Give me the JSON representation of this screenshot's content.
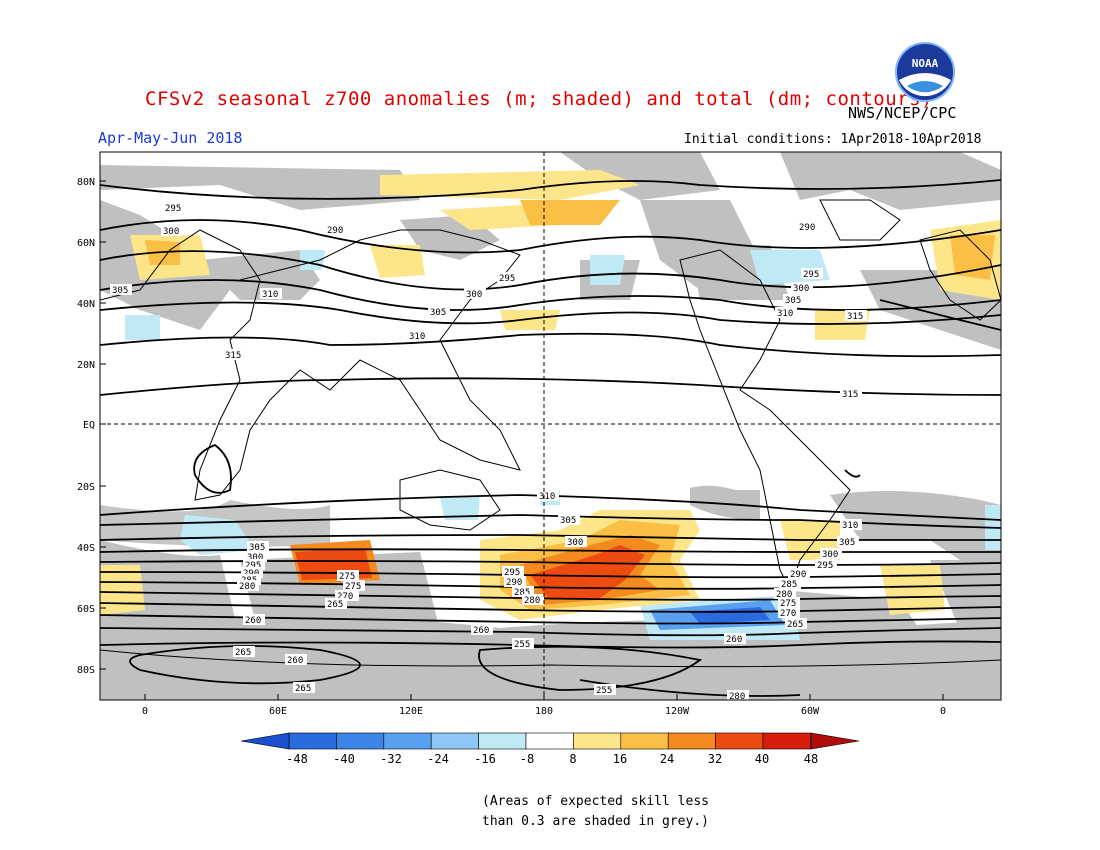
{
  "title": "CFSv2 seasonal z700 anomalies (m; shaded) and total (dm; contours)",
  "agency": "NWS/NCEP/CPC",
  "period": "Apr-May-Jun 2018",
  "initial_conditions": "Initial conditions: 1Apr2018-10Apr2018",
  "logo_text": "NOAA",
  "lat_labels": [
    "80N",
    "60N",
    "40N",
    "20N",
    "EQ",
    "20S",
    "40S",
    "60S",
    "80S"
  ],
  "lon_labels": [
    "0",
    "60E",
    "120E",
    "180",
    "120W",
    "60W",
    "0"
  ],
  "colorbar": {
    "ticks": [
      "-48",
      "-40",
      "-32",
      "-24",
      "-16",
      "-8",
      "8",
      "16",
      "24",
      "32",
      "40",
      "48"
    ],
    "colors": [
      "#2a6be0",
      "#3c85e8",
      "#5aa0f0",
      "#8ec7f5",
      "#bfeaf5",
      "#ffffff",
      "#fde68a",
      "#fbbf45",
      "#f58a1f",
      "#ee4b12",
      "#d81e0a"
    ],
    "end_low": "#1b4fd0",
    "end_high": "#b00c0c"
  },
  "skill_note": [
    "(Areas of expected skill less",
    "than 0.3 are shaded in grey.)"
  ],
  "contour_labels": [
    "295",
    "300",
    "290",
    "305",
    "310",
    "315",
    "295",
    "300",
    "305",
    "310",
    "290",
    "295",
    "300",
    "305",
    "310",
    "315",
    "315",
    "310",
    "305",
    "300",
    "295",
    "290",
    "285",
    "280",
    "275",
    "270",
    "265",
    "260",
    "255",
    "260",
    "265",
    "260",
    "255",
    "280",
    "265",
    "305",
    "300",
    "295",
    "290",
    "285",
    "280",
    "275",
    "270",
    "265",
    "260",
    "310",
    "305",
    "300",
    "295",
    "290",
    "285",
    "280",
    "275",
    "270",
    "265",
    "260"
  ],
  "colors": {
    "grey_mask": "#c0c0c0",
    "land_outline": "#000000",
    "contour": "#000000"
  }
}
